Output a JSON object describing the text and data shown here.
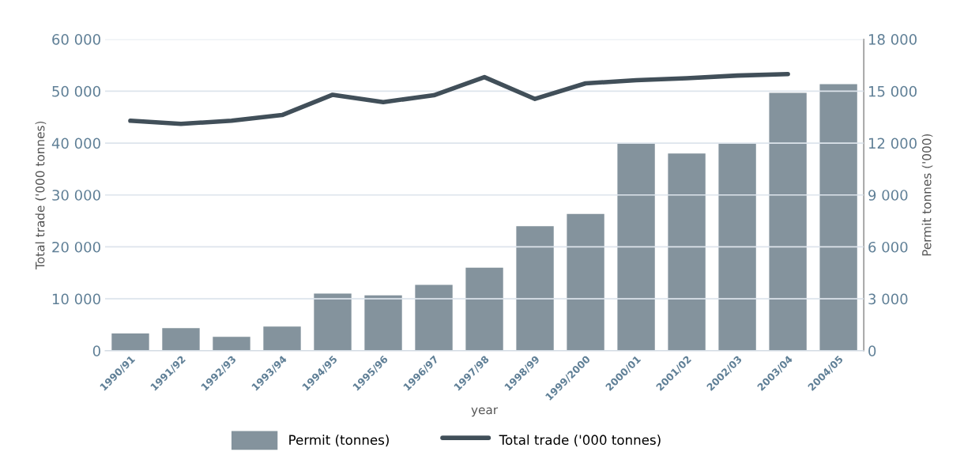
{
  "chart_data": {
    "type": "bar",
    "categories": [
      "1990/91",
      "1991/92",
      "1992/93",
      "1993/94",
      "1994/95",
      "1995/96",
      "1996/97",
      "1997/98",
      "1998/99",
      "1999/2000",
      "2000/01",
      "2001/02",
      "2002/03",
      "2003/04",
      "2004/05"
    ],
    "xlabel": "year",
    "ylabel": "Total trade ('000 tonnes)",
    "y2label": "Permit tonnes ('000)",
    "series": [
      {
        "name": "Permit (tonnes)",
        "axis": "y2",
        "color": "#84939d",
        "values": [
          1000,
          1300,
          800,
          1400,
          3300,
          3200,
          3800,
          4800,
          7200,
          7900,
          12000,
          11400,
          12000,
          14900,
          15400
        ]
      },
      {
        "name": "Total trade ('000 tonnes)",
        "type": "line",
        "axis": "y",
        "color": "#414f59",
        "values": [
          44300,
          43700,
          44300,
          45400,
          49300,
          47900,
          49200,
          52700,
          48500,
          51500,
          52100,
          52500,
          53000,
          53300,
          null
        ]
      }
    ],
    "ylim": [
      0,
      60000
    ],
    "yticks": [
      {
        "value": 0,
        "label": "0"
      },
      {
        "value": 10000,
        "label": "10 000"
      },
      {
        "value": 20000,
        "label": "20 000"
      },
      {
        "value": 30000,
        "label": "30 000"
      },
      {
        "value": 40000,
        "label": "40 000"
      },
      {
        "value": 50000,
        "label": "50 000"
      },
      {
        "value": 60000,
        "label": "60 000"
      }
    ],
    "y2lim": [
      0,
      18000
    ],
    "y2ticks": [
      {
        "value": 0,
        "label": "0"
      },
      {
        "value": 3000,
        "label": "3 000"
      },
      {
        "value": 6000,
        "label": "6 000"
      },
      {
        "value": 9000,
        "label": "9 000"
      },
      {
        "value": 12000,
        "label": "12 000"
      },
      {
        "value": 15000,
        "label": "15 000"
      },
      {
        "value": 18000,
        "label": "18 000"
      }
    ],
    "grid": "y",
    "legend": "bottom",
    "marker": "none",
    "line_style": "solid"
  }
}
